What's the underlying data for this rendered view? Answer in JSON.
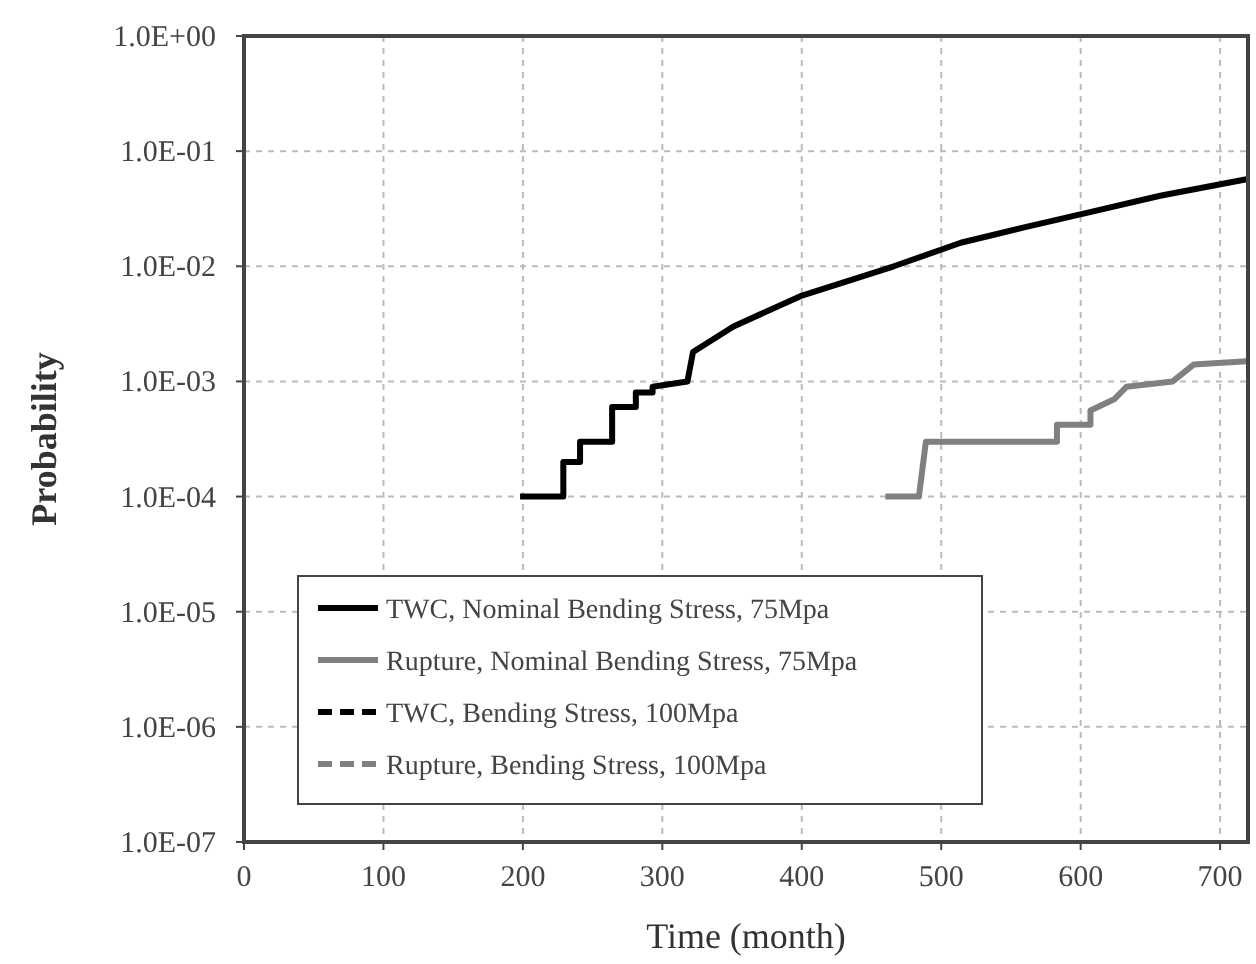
{
  "chart_data": {
    "type": "line",
    "xlabel": "Time (month)",
    "ylabel": "Probability",
    "log": "y",
    "grid": true,
    "legend": "bottom left",
    "xlim": [
      0,
      720
    ],
    "xticks": [
      0,
      100,
      200,
      300,
      400,
      500,
      600,
      700
    ],
    "ylim": [
      1e-07,
      1
    ],
    "yticks": [
      {
        "value": 1e-07,
        "label": "1.0E-07"
      },
      {
        "value": 1e-06,
        "label": "1.0E-06"
      },
      {
        "value": 1e-05,
        "label": "1.0E-05"
      },
      {
        "value": 0.0001,
        "label": "1.0E-04"
      },
      {
        "value": 0.001,
        "label": "1.0E-03"
      },
      {
        "value": 0.01,
        "label": "1.0E-02"
      },
      {
        "value": 0.1,
        "label": "1.0E-01"
      },
      {
        "value": 1,
        "label": "1.0E+00"
      }
    ],
    "series": [
      {
        "name": "TWC, Nominal Bending Stress, 75Mpa",
        "color": "#000000",
        "line_style": "solid",
        "x": [
          198,
          229,
          229,
          241,
          241,
          264,
          264,
          281,
          281,
          293,
          293,
          318,
          322,
          351,
          399,
          466,
          514,
          561,
          609,
          657,
          719
        ],
        "values": [
          0.0001,
          0.0001,
          0.0002,
          0.0002,
          0.0003,
          0.0003,
          0.0006,
          0.0006,
          0.0008,
          0.0008,
          0.0009,
          0.001,
          0.0018,
          0.003,
          0.0055,
          0.01,
          0.016,
          0.022,
          0.03,
          0.041,
          0.057
        ]
      },
      {
        "name": "Rupture, Nominal Bending Stress, 75Mpa",
        "color": "#808080",
        "line_style": "solid",
        "x": [
          460,
          484,
          489,
          583,
          583,
          607,
          607,
          624,
          633,
          666,
          681,
          719
        ],
        "values": [
          0.0001,
          0.0001,
          0.0003,
          0.0003,
          0.00042,
          0.00042,
          0.00056,
          0.0007,
          0.0009,
          0.001,
          0.0014,
          0.0015
        ]
      },
      {
        "name": "TWC, Bending Stress, 100Mpa",
        "color": "#000000",
        "line_style": "dashed"
      },
      {
        "name": "Rupture, Bending Stress, 100Mpa",
        "color": "#808080",
        "line_style": "dashed"
      }
    ]
  }
}
